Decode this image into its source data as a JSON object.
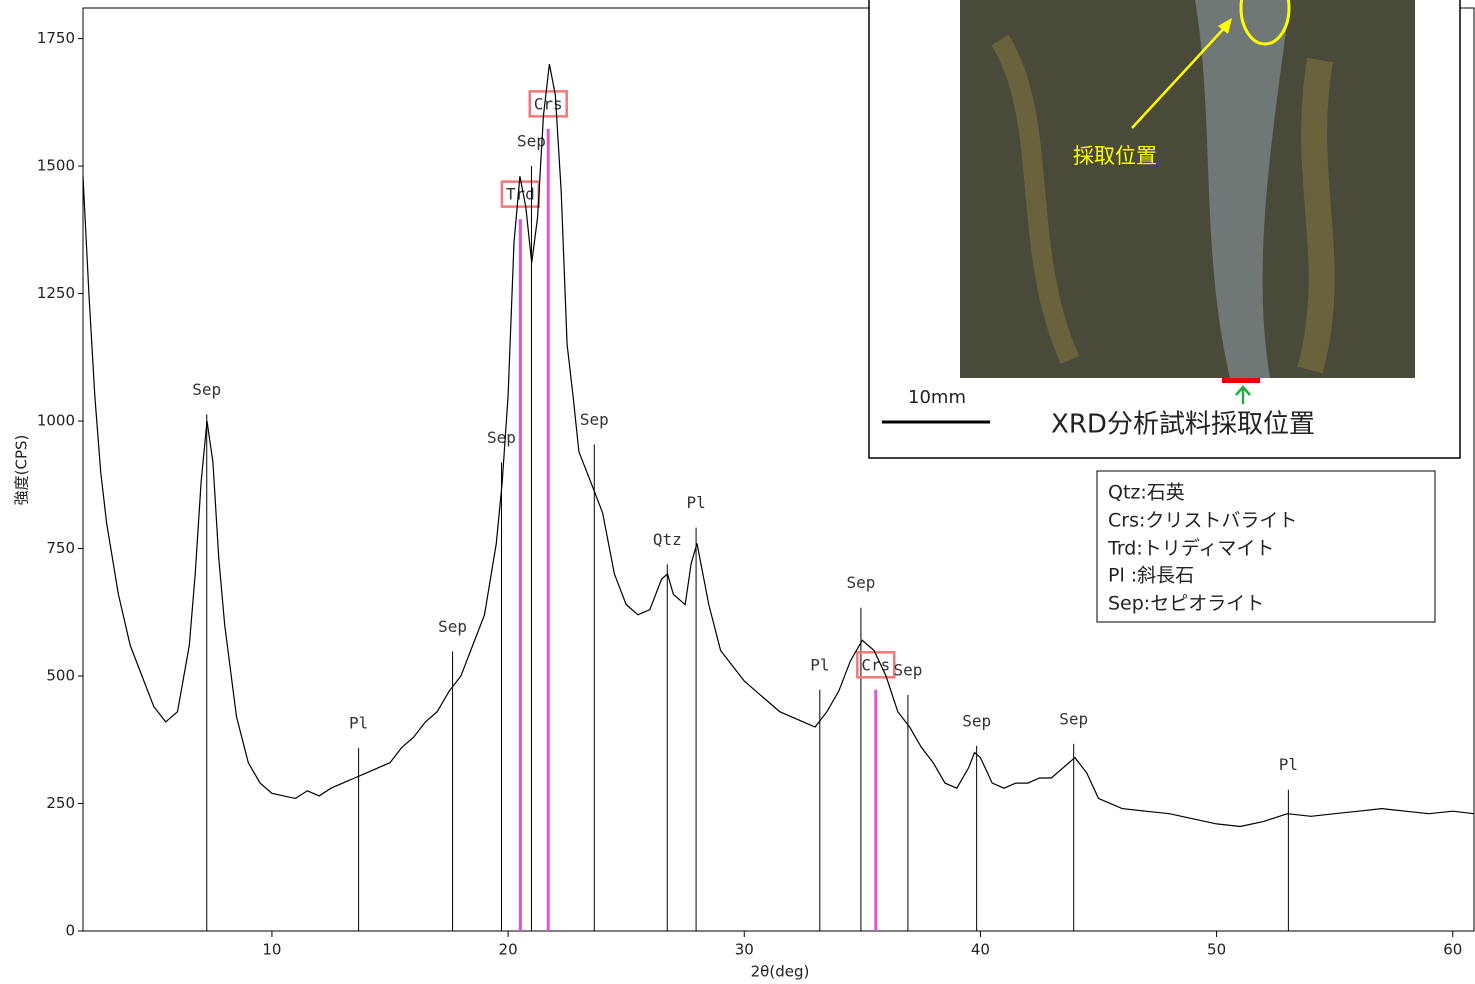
{
  "chart_data": {
    "type": "line",
    "xlabel": "2θ(deg)",
    "ylabel": "強度(CPS)",
    "xlim": [
      2,
      60.9
    ],
    "ylim": [
      0,
      1810
    ],
    "xticks": [
      10,
      20,
      30,
      40,
      50,
      60
    ],
    "yticks": [
      0,
      250,
      500,
      750,
      1000,
      1250,
      1500,
      1750
    ],
    "series": [
      {
        "color": "#000000",
        "x": [
          2.0,
          2.25,
          2.5,
          2.75,
          3.0,
          3.5,
          4.0,
          4.5,
          5.0,
          5.5,
          6.0,
          6.5,
          6.75,
          7.0,
          7.25,
          7.5,
          7.75,
          8.0,
          8.5,
          9.0,
          9.5,
          10,
          10.5,
          11,
          11.5,
          12,
          12.5,
          13,
          13.5,
          14,
          14.5,
          15,
          15.5,
          16,
          16.5,
          17,
          17.5,
          18,
          18.5,
          19,
          19.5,
          19.75,
          20,
          20.25,
          20.5,
          20.75,
          21,
          21.25,
          21.5,
          21.75,
          22,
          22.25,
          22.5,
          22.75,
          23,
          23.5,
          24,
          24.5,
          25,
          25.5,
          26,
          26.5,
          26.75,
          27,
          27.5,
          27.75,
          28,
          28.5,
          29,
          29.5,
          30,
          30.5,
          31,
          31.5,
          32,
          32.5,
          33,
          33.5,
          34,
          34.5,
          35,
          35.5,
          36,
          36.5,
          37,
          37.5,
          38,
          38.5,
          39,
          39.5,
          39.75,
          40,
          40.5,
          41,
          41.5,
          42,
          42.5,
          43,
          43.5,
          44,
          44.5,
          45,
          46,
          47,
          48,
          49,
          50,
          51,
          52,
          53,
          54,
          55,
          56,
          57,
          58,
          59,
          60,
          60.9
        ],
        "values": [
          1480,
          1250,
          1050,
          900,
          800,
          660,
          560,
          500,
          440,
          410,
          430,
          560,
          700,
          880,
          1000,
          920,
          730,
          600,
          420,
          330,
          290,
          270,
          265,
          260,
          275,
          265,
          280,
          290,
          300,
          310,
          320,
          330,
          360,
          380,
          410,
          430,
          470,
          500,
          560,
          620,
          760,
          880,
          1050,
          1350,
          1480,
          1420,
          1310,
          1400,
          1600,
          1700,
          1640,
          1450,
          1150,
          1050,
          940,
          880,
          820,
          700,
          640,
          620,
          630,
          690,
          700,
          660,
          640,
          720,
          760,
          640,
          550,
          520,
          490,
          470,
          450,
          430,
          420,
          410,
          400,
          430,
          470,
          530,
          570,
          550,
          500,
          430,
          400,
          360,
          330,
          290,
          280,
          320,
          350,
          340,
          290,
          280,
          290,
          290,
          300,
          300,
          320,
          340,
          310,
          260,
          240,
          235,
          230,
          220,
          210,
          205,
          215,
          230,
          225,
          230,
          235,
          240,
          235,
          230,
          235,
          230
        ]
      }
    ],
    "peaks": {
      "x": [
        7.24,
        13.67,
        17.65,
        19.72,
        20.52,
        20.99,
        21.7,
        23.65,
        26.74,
        27.96,
        33.2,
        34.94,
        35.57,
        36.93,
        39.84,
        43.95,
        53.04
      ],
      "values": [
        1013,
        359,
        548,
        919,
        1396,
        1500,
        1573,
        954,
        719,
        791,
        473,
        634,
        473,
        463,
        363,
        367,
        277
      ],
      "labels": [
        "Sep",
        "Pl",
        "Sep",
        "Sep",
        "Trd",
        "Sep",
        "Crs",
        "Sep",
        "Qtz",
        "Pl",
        "Pl",
        "Sep",
        "Crs",
        "Sep",
        "Sep",
        "Sep",
        "Pl"
      ],
      "highlight": [
        false,
        false,
        false,
        false,
        true,
        false,
        true,
        false,
        false,
        false,
        false,
        false,
        true,
        false,
        false,
        false,
        false
      ]
    },
    "line_color": "#000000",
    "highlight_color": "#dd55dd",
    "box_color": "#f07878"
  },
  "legend_text": [
    "Qtz:石英",
    "Crs:クリストバライト",
    "Trd:トリディマイト",
    "Pl :斜長石",
    "Sep:セピオライト"
  ],
  "photo": {
    "label": "採取位置",
    "scale": "10mm",
    "caption": "XRD分析試料採取位置"
  }
}
